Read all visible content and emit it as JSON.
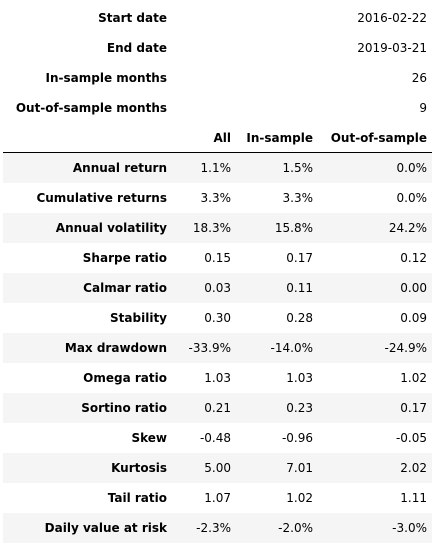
{
  "meta": [
    {
      "label": "Start date",
      "value": "2016-02-22"
    },
    {
      "label": "End date",
      "value": "2019-03-21"
    },
    {
      "label": "In-sample months",
      "value": "26"
    },
    {
      "label": "Out-of-sample months",
      "value": "9"
    }
  ],
  "columns": [
    "All",
    "In-sample",
    "Out-of-sample"
  ],
  "rows": [
    {
      "label": "Annual return",
      "values": [
        "1.1%",
        "1.5%",
        "0.0%"
      ]
    },
    {
      "label": "Cumulative returns",
      "values": [
        "3.3%",
        "3.3%",
        "0.0%"
      ]
    },
    {
      "label": "Annual volatility",
      "values": [
        "18.3%",
        "15.8%",
        "24.2%"
      ]
    },
    {
      "label": "Sharpe ratio",
      "values": [
        "0.15",
        "0.17",
        "0.12"
      ]
    },
    {
      "label": "Calmar ratio",
      "values": [
        "0.03",
        "0.11",
        "0.00"
      ]
    },
    {
      "label": "Stability",
      "values": [
        "0.30",
        "0.28",
        "0.09"
      ]
    },
    {
      "label": "Max drawdown",
      "values": [
        "-33.9%",
        "-14.0%",
        "-24.9%"
      ]
    },
    {
      "label": "Omega ratio",
      "values": [
        "1.03",
        "1.03",
        "1.02"
      ]
    },
    {
      "label": "Sortino ratio",
      "values": [
        "0.21",
        "0.23",
        "0.17"
      ]
    },
    {
      "label": "Skew",
      "values": [
        "-0.48",
        "-0.96",
        "-0.05"
      ]
    },
    {
      "label": "Kurtosis",
      "values": [
        "5.00",
        "7.01",
        "2.02"
      ]
    },
    {
      "label": "Tail ratio",
      "values": [
        "1.07",
        "1.02",
        "1.11"
      ]
    },
    {
      "label": "Daily value at risk",
      "values": [
        "-2.3%",
        "-2.0%",
        "-3.0%"
      ]
    }
  ]
}
